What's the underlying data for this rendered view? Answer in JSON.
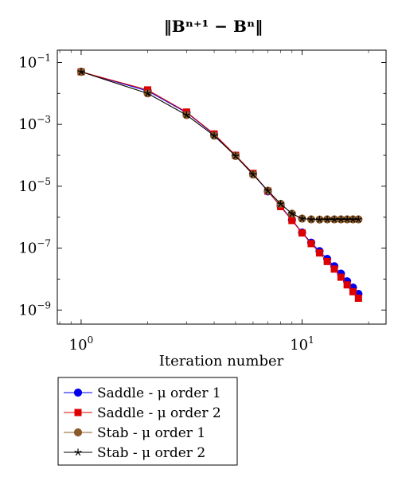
{
  "chart_data": {
    "type": "line",
    "title": "‖Bⁿ⁺¹ − Bⁿ‖",
    "xlabel": "Iteration number",
    "ylabel": "",
    "xscale": "log",
    "yscale": "log",
    "xlim": [
      0.78,
      24
    ],
    "ylim": [
      3.5e-10,
      0.25
    ],
    "xticks": [
      1,
      10
    ],
    "xtick_labels": [
      {
        "base": "10",
        "exp": "0"
      },
      {
        "base": "10",
        "exp": "1"
      }
    ],
    "yticks": [
      1e-09,
      1e-07,
      1e-05,
      0.001,
      0.1
    ],
    "ytick_labels": [
      {
        "base": "10",
        "exp": "−9"
      },
      {
        "base": "10",
        "exp": "−7"
      },
      {
        "base": "10",
        "exp": "−5"
      },
      {
        "base": "10",
        "exp": "−3"
      },
      {
        "base": "10",
        "exp": "−1"
      }
    ],
    "grid": false,
    "legend_position": "bottom-left, outside below plot",
    "series": [
      {
        "name": "Saddle - μ order 1",
        "color": "#0000ee",
        "marker": "circle",
        "x": [
          1,
          2,
          3,
          4,
          5,
          6,
          7,
          8,
          9,
          10,
          11,
          12,
          13,
          14,
          15,
          16,
          17,
          18
        ],
        "y": [
          0.05,
          0.012,
          0.0024,
          0.00047,
          9.8e-05,
          2.5e-05,
          6.8e-06,
          2.3e-06,
          8.2e-07,
          3.2e-07,
          1.5e-07,
          8e-08,
          4.5e-08,
          2.6e-08,
          1.5e-08,
          8.5e-09,
          5.3e-09,
          3.3e-09
        ]
      },
      {
        "name": "Saddle - μ order 2",
        "color": "#dd0000",
        "marker": "square",
        "x": [
          1,
          2,
          3,
          4,
          5,
          6,
          7,
          8,
          9,
          10,
          11,
          12,
          13,
          14,
          15,
          16,
          17,
          18
        ],
        "y": [
          0.05,
          0.013,
          0.0025,
          0.00049,
          0.0001,
          2.6e-05,
          7e-06,
          2.2e-06,
          7.8e-07,
          3.1e-07,
          1.4e-07,
          7e-08,
          3.7e-08,
          2.1e-08,
          1.15e-08,
          6.5e-09,
          3.9e-09,
          2.4e-09
        ]
      },
      {
        "name": "Stab - μ order 1",
        "color": "#8b5a2b",
        "marker": "circle",
        "x": [
          1,
          2,
          3,
          4,
          5,
          6,
          7,
          8,
          9,
          10,
          11,
          12,
          13,
          14,
          15,
          16,
          17,
          18
        ],
        "y": [
          0.05,
          0.01,
          0.002,
          0.00043,
          9.5e-05,
          2.4e-05,
          7.2e-06,
          2.7e-06,
          1.3e-06,
          9e-07,
          8.5e-07,
          8.4e-07,
          8.5e-07,
          8.5e-07,
          8.5e-07,
          8.5e-07,
          8.5e-07,
          8.5e-07
        ]
      },
      {
        "name": "Stab - μ order 2",
        "color": "#000000",
        "marker": "star",
        "x": [
          1,
          2,
          3,
          4,
          5,
          6,
          7,
          8,
          9,
          10,
          11,
          12,
          13,
          14,
          15,
          16,
          17,
          18
        ],
        "y": [
          0.05,
          0.01,
          0.002,
          0.00043,
          9.5e-05,
          2.4e-05,
          7.2e-06,
          2.7e-06,
          1.3e-06,
          9e-07,
          8.5e-07,
          8.4e-07,
          8.5e-07,
          8.5e-07,
          8.5e-07,
          8.5e-07,
          8.5e-07,
          8.5e-07
        ]
      }
    ]
  }
}
